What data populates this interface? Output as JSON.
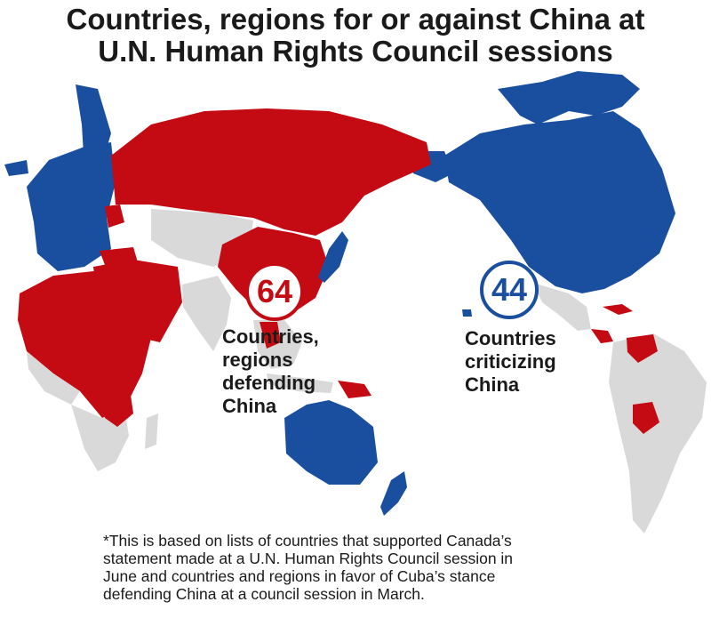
{
  "title": {
    "line1": "Countries, regions for or against China at",
    "line2": "U.N. Human Rights Council sessions"
  },
  "groups": {
    "defending": {
      "count": "64",
      "label_lines": [
        "Countries,",
        "regions",
        "defending",
        "China"
      ],
      "color": "#c40a12"
    },
    "criticizing": {
      "count": "44",
      "label_lines": [
        "Countries",
        "criticizing",
        "China"
      ],
      "color": "#1a4fa0"
    },
    "neutral_color": "#d9d9d9"
  },
  "footnote": {
    "lines": [
      "*This is based on lists of countries that supported Canada’s",
      "statement made at a U.N. Human Rights Council session in",
      "June and countries and regions in favor of Cuba’s stance",
      "defending China at a council session in March."
    ]
  }
}
